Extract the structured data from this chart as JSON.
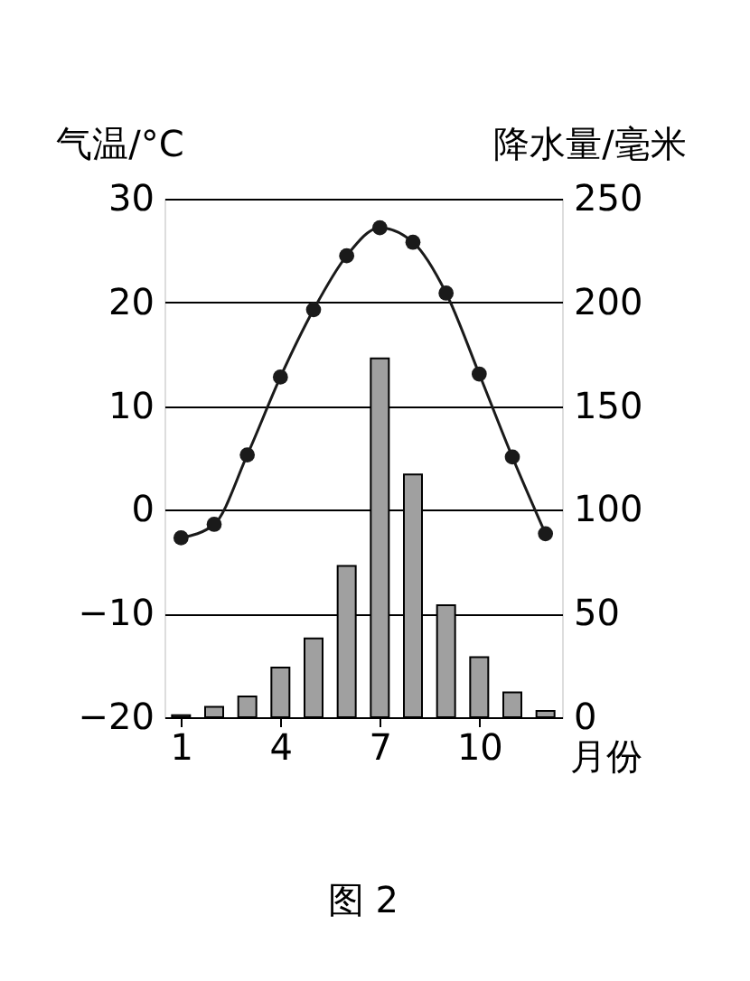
{
  "chart_data": {
    "type": "line",
    "xlabel": "月份",
    "ylabel": "气温/°C",
    "y2label": "降水量/毫米",
    "x": [
      1,
      2,
      3,
      4,
      5,
      6,
      7,
      8,
      9,
      10,
      11,
      12
    ],
    "xlim": [
      0.5,
      12.5
    ],
    "xticks": [
      1,
      4,
      7,
      10
    ],
    "ylim": [
      -20,
      30
    ],
    "yticks": [
      -20,
      -10,
      0,
      10,
      20,
      30
    ],
    "y2lim": [
      0,
      250
    ],
    "y2ticks": [
      0,
      50,
      100,
      150,
      200,
      250
    ],
    "grid": "y",
    "marker": "circle",
    "line_style": "solid",
    "series": [
      {
        "color": "#1a1a1a",
        "values": [
          -2.7,
          -1.4,
          5.3,
          12.8,
          19.3,
          24.5,
          27.2,
          25.8,
          20.9,
          13.1,
          5.1,
          -2.3
        ]
      },
      {
        "type": "bar",
        "axis": "y2",
        "color": "#a0a0a0",
        "values": [
          1,
          5,
          10,
          24,
          38,
          73,
          173,
          117,
          54,
          29,
          12,
          3
        ]
      }
    ],
    "annotations": [
      "图 2"
    ]
  }
}
